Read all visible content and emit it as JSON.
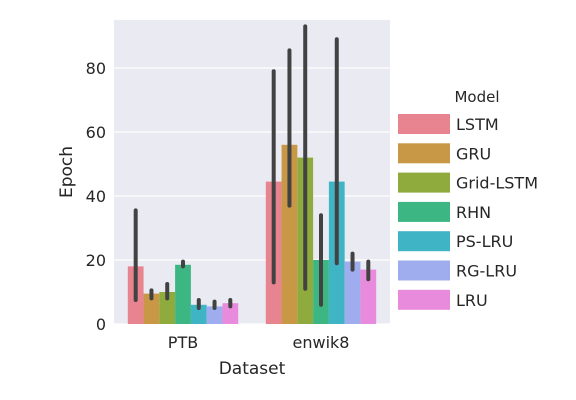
{
  "chart_data": {
    "type": "bar",
    "xlabel": "Dataset",
    "ylabel": "Epoch",
    "categories": [
      "PTB",
      "enwik8"
    ],
    "ylim": [
      0,
      95
    ],
    "yticks": [
      0,
      20,
      40,
      60,
      80
    ],
    "grid": true,
    "legend_title": "Model",
    "legend_position": "right",
    "error_bars": true,
    "series": [
      {
        "name": "LSTM",
        "color": "#e8848f",
        "values": [
          18,
          44.5
        ],
        "ci": [
          [
            7.5,
            35.5
          ],
          [
            13,
            79
          ]
        ]
      },
      {
        "name": "GRU",
        "color": "#c89847",
        "values": [
          9.5,
          56
        ],
        "ci": [
          [
            8,
            10.5
          ],
          [
            37,
            85.5
          ]
        ]
      },
      {
        "name": "Grid-LSTM",
        "color": "#8fab3d",
        "values": [
          10,
          52
        ],
        "ci": [
          [
            8,
            12.5
          ],
          [
            11,
            93
          ]
        ]
      },
      {
        "name": "RHN",
        "color": "#3cb682",
        "values": [
          18.5,
          20
        ],
        "ci": [
          [
            18,
            19.5
          ],
          [
            6,
            34
          ]
        ]
      },
      {
        "name": "PS-LRU",
        "color": "#3fb4c5",
        "values": [
          6,
          44.5
        ],
        "ci": [
          [
            5,
            7.5
          ],
          [
            19,
            89
          ]
        ]
      },
      {
        "name": "RG-LRU",
        "color": "#9fadee",
        "values": [
          5.5,
          19.5
        ],
        "ci": [
          [
            5,
            7
          ],
          [
            17,
            22
          ]
        ]
      },
      {
        "name": "LRU",
        "color": "#e88bdc",
        "values": [
          6.5,
          17
        ],
        "ci": [
          [
            5.5,
            7.5
          ],
          [
            14,
            19.5
          ]
        ]
      }
    ]
  }
}
